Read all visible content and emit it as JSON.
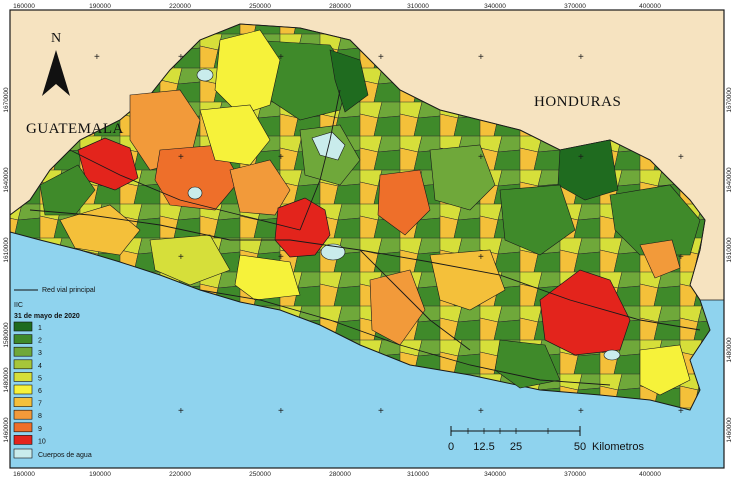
{
  "map": {
    "north_label": "N",
    "countries": {
      "guatemala": "GUATEMALA",
      "honduras": "HONDURAS"
    },
    "colors": {
      "ocean": "#8fd3ee",
      "land_neighbors": "#f6e3c0",
      "water_body": "#c9ecec",
      "border": "#1a1a1a"
    }
  },
  "axes": {
    "x_ticks_top": [
      "160000",
      "190000",
      "220000",
      "250000",
      "280000",
      "310000",
      "340000",
      "370000",
      "400000"
    ],
    "x_ticks_bottom": [
      "160000",
      "190000",
      "220000",
      "250000",
      "280000",
      "310000",
      "340000",
      "370000",
      "400000"
    ],
    "y_ticks_left": [
      "1670000",
      "1640000",
      "1610000",
      "1580000",
      "1480000",
      "1460000"
    ],
    "y_ticks_right": [
      "1670000",
      "1640000",
      "1610000",
      "1480000",
      "1460000"
    ]
  },
  "legend": {
    "road_label": "Red vial principal",
    "index_title": "IIC",
    "date": "31 de mayo de 2020",
    "classes": [
      {
        "label": "1",
        "color": "#1f6b1f"
      },
      {
        "label": "2",
        "color": "#3f8a2a"
      },
      {
        "label": "3",
        "color": "#6fa83a"
      },
      {
        "label": "4",
        "color": "#a6c63a"
      },
      {
        "label": "5",
        "color": "#d6df3a"
      },
      {
        "label": "6",
        "color": "#f6f23a"
      },
      {
        "label": "7",
        "color": "#f4c03a"
      },
      {
        "label": "8",
        "color": "#f29a3a"
      },
      {
        "label": "9",
        "color": "#ee6f2a"
      },
      {
        "label": "10",
        "color": "#e3241c"
      }
    ],
    "water_label": "Cuerpos de agua"
  },
  "scale_bar": {
    "labels": [
      "0",
      "12.5",
      "25",
      "50"
    ],
    "unit": "Kilometros"
  }
}
